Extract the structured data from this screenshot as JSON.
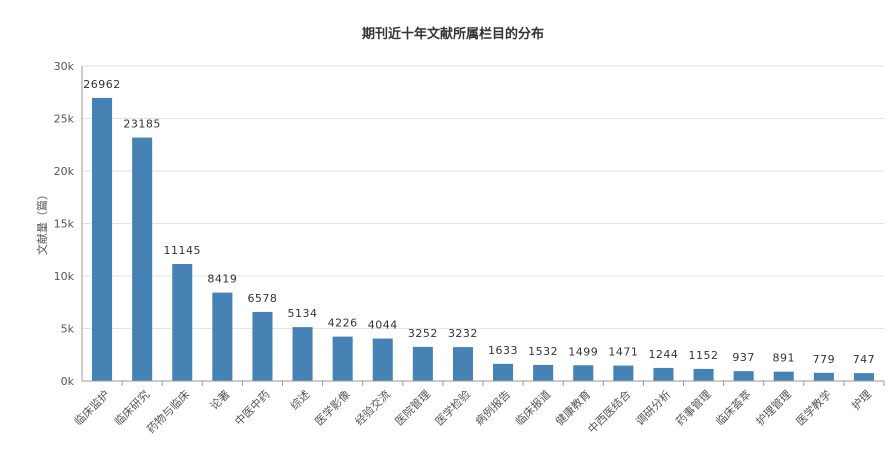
{
  "chart_data": {
    "type": "bar",
    "title": "期刊近十年文献所属栏目的分布",
    "xlabel": "",
    "ylabel": "文献量（篇）",
    "ylim": [
      0,
      30000
    ],
    "yticks": [
      0,
      5000,
      10000,
      15000,
      20000,
      25000,
      30000
    ],
    "ytick_labels": [
      "0k",
      "5k",
      "10k",
      "15k",
      "20k",
      "25k",
      "30k"
    ],
    "grid": true,
    "bar_color": "#4682b4",
    "categories": [
      "临床监护",
      "临床研究",
      "药物与临床",
      "论著",
      "中医中药",
      "综述",
      "医学影像",
      "经验交流",
      "医院管理",
      "医学检验",
      "病例报告",
      "临床报道",
      "健康教育",
      "中西医结合",
      "调研分析",
      "药事管理",
      "临床荟萃",
      "护理管理",
      "医学教学",
      "护理"
    ],
    "values": [
      26962,
      23185,
      11145,
      8419,
      6578,
      5134,
      4226,
      4044,
      3252,
      3232,
      1633,
      1532,
      1499,
      1471,
      1244,
      1152,
      937,
      891,
      779,
      747
    ]
  }
}
